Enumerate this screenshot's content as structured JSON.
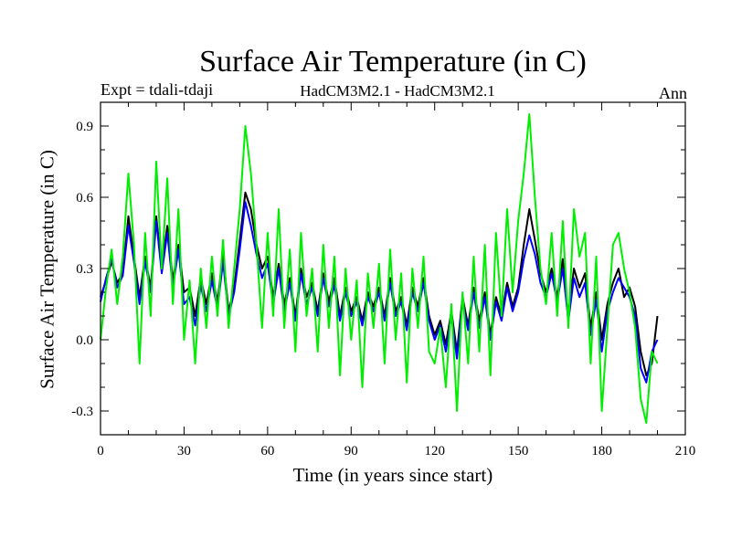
{
  "chart_data": {
    "type": "line",
    "title": "Surface Air Temperature (in C)",
    "subtitle_left": "Expt = tdali-tdaji",
    "subtitle_center": "HadCM3M2.1 - HadCM3M2.1",
    "subtitle_right": "Ann",
    "xlabel": "Time (in years since start)",
    "ylabel": "Surface Air Temperature (in C)",
    "xlim": [
      0,
      210
    ],
    "ylim": [
      -0.4,
      1.0
    ],
    "xticks": [
      0,
      30,
      60,
      90,
      120,
      150,
      180,
      210
    ],
    "yticks": [
      -0.3,
      0.0,
      0.3,
      0.6,
      0.9
    ],
    "ytick_labels": [
      "-0.3",
      "0.0",
      "0.3",
      "0.6",
      "0.9"
    ],
    "x": [
      0,
      2,
      4,
      6,
      8,
      10,
      12,
      14,
      16,
      18,
      20,
      22,
      24,
      26,
      28,
      30,
      32,
      34,
      36,
      38,
      40,
      42,
      44,
      46,
      48,
      50,
      52,
      54,
      56,
      58,
      60,
      62,
      64,
      66,
      68,
      70,
      72,
      74,
      76,
      78,
      80,
      82,
      84,
      86,
      88,
      90,
      92,
      94,
      96,
      98,
      100,
      102,
      104,
      106,
      108,
      110,
      112,
      114,
      116,
      118,
      120,
      122,
      124,
      126,
      128,
      130,
      132,
      134,
      136,
      138,
      140,
      142,
      144,
      146,
      148,
      150,
      152,
      154,
      156,
      158,
      160,
      162,
      164,
      166,
      168,
      170,
      172,
      174,
      176,
      178,
      180,
      182,
      184,
      186,
      188,
      190,
      192,
      194,
      196,
      198,
      200
    ],
    "series": [
      {
        "name": "black",
        "color": "#000000",
        "values": [
          0.18,
          0.25,
          0.33,
          0.24,
          0.28,
          0.52,
          0.35,
          0.18,
          0.35,
          0.22,
          0.52,
          0.3,
          0.48,
          0.25,
          0.4,
          0.2,
          0.22,
          0.1,
          0.26,
          0.15,
          0.28,
          0.16,
          0.36,
          0.12,
          0.22,
          0.42,
          0.62,
          0.55,
          0.4,
          0.3,
          0.35,
          0.18,
          0.32,
          0.15,
          0.26,
          0.1,
          0.3,
          0.18,
          0.24,
          0.12,
          0.28,
          0.16,
          0.26,
          0.1,
          0.22,
          0.12,
          0.18,
          0.08,
          0.2,
          0.14,
          0.22,
          0.1,
          0.26,
          0.12,
          0.18,
          0.06,
          0.22,
          0.14,
          0.26,
          0.1,
          0.02,
          0.08,
          -0.02,
          0.12,
          -0.05,
          0.18,
          0.06,
          0.22,
          0.08,
          0.2,
          0.02,
          0.18,
          0.1,
          0.24,
          0.14,
          0.22,
          0.4,
          0.55,
          0.42,
          0.28,
          0.2,
          0.3,
          0.18,
          0.34,
          0.1,
          0.3,
          0.22,
          0.28,
          0.05,
          0.2,
          0.0,
          0.15,
          0.24,
          0.3,
          0.18,
          0.22,
          0.14,
          -0.05,
          -0.15,
          -0.1,
          0.1
        ]
      },
      {
        "name": "blue",
        "color": "#0000ff",
        "values": [
          0.16,
          0.26,
          0.34,
          0.22,
          0.27,
          0.48,
          0.33,
          0.15,
          0.33,
          0.2,
          0.5,
          0.28,
          0.45,
          0.22,
          0.38,
          0.15,
          0.18,
          0.06,
          0.23,
          0.12,
          0.25,
          0.13,
          0.33,
          0.1,
          0.2,
          0.38,
          0.58,
          0.48,
          0.36,
          0.26,
          0.32,
          0.15,
          0.3,
          0.12,
          0.24,
          0.08,
          0.28,
          0.15,
          0.22,
          0.1,
          0.26,
          0.14,
          0.23,
          0.08,
          0.2,
          0.1,
          0.16,
          0.06,
          0.18,
          0.12,
          0.2,
          0.08,
          0.24,
          0.1,
          0.16,
          0.04,
          0.2,
          0.12,
          0.24,
          0.08,
          0.0,
          0.06,
          -0.05,
          0.1,
          -0.08,
          0.16,
          0.04,
          0.2,
          0.05,
          0.18,
          0.0,
          0.16,
          0.08,
          0.22,
          0.12,
          0.2,
          0.34,
          0.44,
          0.36,
          0.24,
          0.18,
          0.28,
          0.16,
          0.3,
          0.08,
          0.26,
          0.18,
          0.24,
          0.02,
          0.17,
          -0.05,
          0.12,
          0.2,
          0.26,
          0.22,
          0.18,
          0.1,
          -0.12,
          -0.18,
          -0.05,
          0.0
        ]
      },
      {
        "name": "green",
        "color": "#00ee00",
        "values": [
          0.0,
          0.22,
          0.38,
          0.15,
          0.35,
          0.7,
          0.4,
          -0.1,
          0.45,
          0.1,
          0.75,
          0.3,
          0.68,
          0.15,
          0.55,
          0.0,
          0.25,
          -0.1,
          0.3,
          0.05,
          0.35,
          0.1,
          0.42,
          0.05,
          0.3,
          0.55,
          0.9,
          0.7,
          0.4,
          0.05,
          0.45,
          0.1,
          0.55,
          0.05,
          0.38,
          -0.05,
          0.45,
          0.1,
          0.3,
          -0.05,
          0.4,
          0.05,
          0.35,
          -0.15,
          0.3,
          0.0,
          0.25,
          -0.2,
          0.28,
          0.05,
          0.32,
          -0.1,
          0.38,
          0.0,
          0.28,
          -0.18,
          0.3,
          0.05,
          0.35,
          -0.05,
          -0.1,
          0.05,
          -0.2,
          0.15,
          -0.3,
          0.2,
          -0.1,
          0.35,
          -0.05,
          0.4,
          -0.15,
          0.45,
          0.1,
          0.55,
          0.2,
          0.5,
          0.7,
          0.95,
          0.6,
          0.3,
          0.15,
          0.45,
          0.1,
          0.5,
          0.05,
          0.55,
          0.35,
          0.45,
          -0.1,
          0.35,
          -0.3,
          0.05,
          0.4,
          0.45,
          0.3,
          0.2,
          0.05,
          -0.25,
          -0.35,
          -0.05,
          -0.1
        ]
      }
    ]
  }
}
